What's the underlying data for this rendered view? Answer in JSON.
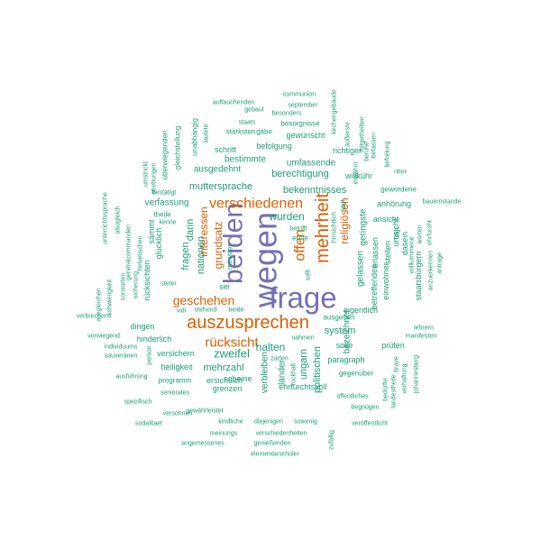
{
  "palette": {
    "teal": "#1b9e77",
    "orange": "#d95f02",
    "purple": "#7570b3"
  },
  "words": [
    {
      "text": "frage",
      "color": "purple"
    },
    {
      "text": "wegen",
      "color": "purple"
    },
    {
      "text": "beiden",
      "color": "purple"
    },
    {
      "text": "mehrheit",
      "color": "orange"
    },
    {
      "text": "auszusprechen",
      "color": "orange"
    },
    {
      "text": "verschiedenen",
      "color": "orange"
    },
    {
      "text": "offen",
      "color": "orange"
    },
    {
      "text": "rücksicht",
      "color": "orange"
    },
    {
      "text": "geschehen",
      "color": "orange"
    },
    {
      "text": "religiösen",
      "color": "orange"
    },
    {
      "text": "interessen",
      "color": "orange"
    },
    {
      "text": "grundsatz",
      "color": "orange"
    },
    {
      "text": "wurden",
      "color": "teal"
    },
    {
      "text": "zweifel",
      "color": "teal"
    },
    {
      "text": "halten",
      "color": "teal"
    },
    {
      "text": "muttersprache",
      "color": "teal"
    },
    {
      "text": "bekenntnisses",
      "color": "teal"
    },
    {
      "text": "berechtigung",
      "color": "teal"
    },
    {
      "text": "fragen",
      "color": "teal"
    },
    {
      "text": "darin",
      "color": "teal"
    },
    {
      "text": "nationen",
      "color": "teal"
    },
    {
      "text": "system",
      "color": "teal"
    },
    {
      "text": "mehrzahl",
      "color": "teal"
    },
    {
      "text": "ungarn",
      "color": "teal"
    },
    {
      "text": "politischen",
      "color": "teal"
    },
    {
      "text": "bezeichnet",
      "color": "teal"
    },
    {
      "text": "gelassen",
      "color": "teal"
    },
    {
      "text": "geringste",
      "color": "teal"
    },
    {
      "text": "verfassung",
      "color": "teal"
    },
    {
      "text": "umfassende",
      "color": "teal"
    },
    {
      "text": "bestimmte",
      "color": "teal"
    },
    {
      "text": "ausgedehnt",
      "color": "teal"
    },
    {
      "text": "schritt",
      "color": "teal"
    },
    {
      "text": "befolgung",
      "color": "teal"
    },
    {
      "text": "willkühr",
      "color": "teal"
    },
    {
      "text": "gewünscht",
      "color": "teal"
    },
    {
      "text": "richtiger",
      "color": "teal"
    },
    {
      "text": "ansicht",
      "color": "teal"
    },
    {
      "text": "erlassen",
      "color": "teal"
    },
    {
      "text": "stellen",
      "color": "teal"
    },
    {
      "text": "betreffenden",
      "color": "teal"
    },
    {
      "text": "einwohner",
      "color": "teal"
    },
    {
      "text": "umsicht",
      "color": "teal"
    },
    {
      "text": "staatsbürgern",
      "color": "teal"
    },
    {
      "text": "dasein",
      "color": "teal"
    },
    {
      "text": "anhörung",
      "color": "teal"
    },
    {
      "text": "gewordene",
      "color": "teal"
    },
    {
      "text": "eigentlich",
      "color": "teal"
    },
    {
      "text": "ausgehen",
      "color": "teal"
    },
    {
      "text": "solle",
      "color": "teal"
    },
    {
      "text": "prüfen",
      "color": "teal"
    },
    {
      "text": "paragraph",
      "color": "teal"
    },
    {
      "text": "gegenüber",
      "color": "teal"
    },
    {
      "text": "ehrfurchtsvoll",
      "color": "teal"
    },
    {
      "text": "ersichtlich",
      "color": "teal"
    },
    {
      "text": "scheine",
      "color": "teal"
    },
    {
      "text": "grenzen",
      "color": "teal"
    },
    {
      "text": "heiligkeit",
      "color": "teal"
    },
    {
      "text": "versichern",
      "color": "teal"
    },
    {
      "text": "hinderlich",
      "color": "teal"
    },
    {
      "text": "dingen",
      "color": "teal"
    },
    {
      "text": "programm",
      "color": "teal"
    },
    {
      "text": "seniorates",
      "color": "teal"
    },
    {
      "text": "glücklich",
      "color": "teal"
    },
    {
      "text": "sei",
      "color": "teal"
    },
    {
      "text": "minister",
      "color": "teal"
    },
    {
      "text": "länder",
      "color": "teal"
    },
    {
      "text": "verbleiben",
      "color": "teal"
    },
    {
      "text": "rücksichten",
      "color": "teal"
    },
    {
      "text": "sämmt",
      "color": "teal"
    },
    {
      "text": "gleichstellung",
      "color": "teal"
    },
    {
      "text": "überwiegenden",
      "color": "teal"
    },
    {
      "text": "unabhängig",
      "color": "teal"
    },
    {
      "text": "stärksten",
      "color": "teal"
    },
    {
      "text": "gäbe",
      "color": "teal"
    },
    {
      "text": "besorgnisse",
      "color": "teal"
    },
    {
      "text": "staats",
      "color": "teal"
    },
    {
      "text": "gebaut",
      "color": "teal"
    },
    {
      "text": "september",
      "color": "teal"
    },
    {
      "text": "besonders",
      "color": "teal"
    },
    {
      "text": "auftauchenden",
      "color": "teal"
    },
    {
      "text": "communion",
      "color": "teal"
    },
    {
      "text": "kirchengebäude",
      "color": "teal"
    },
    {
      "text": "äußerste",
      "color": "teal"
    },
    {
      "text": "mitgetheilten",
      "color": "teal"
    },
    {
      "text": "befassen",
      "color": "teal"
    },
    {
      "text": "befreiung",
      "color": "teal"
    },
    {
      "text": "ritter",
      "color": "teal"
    },
    {
      "text": "bauernstande",
      "color": "teal"
    },
    {
      "text": "erwähnt",
      "color": "teal"
    },
    {
      "text": "lautete",
      "color": "teal"
    },
    {
      "text": "umstrickt",
      "color": "teal"
    },
    {
      "text": "strebungen",
      "color": "teal"
    },
    {
      "text": "bestätigt",
      "color": "teal"
    },
    {
      "text": "theile",
      "color": "teal"
    },
    {
      "text": "kenne",
      "color": "teal"
    },
    {
      "text": "unterrichtssprache",
      "color": "teal"
    },
    {
      "text": "alsogleich",
      "color": "teal"
    },
    {
      "text": "generalcommanden",
      "color": "teal"
    },
    {
      "text": "helvetischen",
      "color": "teal"
    },
    {
      "text": "sicherung",
      "color": "teal"
    },
    {
      "text": "schwierigkeit",
      "color": "teal"
    },
    {
      "text": "ausgleichen",
      "color": "teal"
    },
    {
      "text": "consorten",
      "color": "teal"
    },
    {
      "text": "steter",
      "color": "teal"
    },
    {
      "text": "vidi",
      "color": "teal"
    },
    {
      "text": "stehend",
      "color": "teal"
    },
    {
      "text": "beide",
      "color": "teal"
    },
    {
      "text": "verbrechens",
      "color": "teal"
    },
    {
      "text": "vorwiegend",
      "color": "teal"
    },
    {
      "text": "individuums",
      "color": "teal"
    },
    {
      "text": "souveränen",
      "color": "teal"
    },
    {
      "text": "person",
      "color": "teal"
    },
    {
      "text": "ausführung",
      "color": "teal"
    },
    {
      "text": "specifisch",
      "color": "teal"
    },
    {
      "text": "versöhnen",
      "color": "teal"
    },
    {
      "text": "gewährleistet",
      "color": "teal"
    },
    {
      "text": "sodalitaet",
      "color": "teal"
    },
    {
      "text": "kindliche",
      "color": "teal"
    },
    {
      "text": "diejenigen",
      "color": "teal"
    },
    {
      "text": "sowenig",
      "color": "teal"
    },
    {
      "text": "meinungs",
      "color": "teal"
    },
    {
      "text": "verschiedenheiten",
      "color": "teal"
    },
    {
      "text": "angemessenes",
      "color": "teal"
    },
    {
      "text": "genießenden",
      "color": "teal"
    },
    {
      "text": "elementarschüler",
      "color": "teal"
    },
    {
      "text": "zufällig",
      "color": "teal"
    },
    {
      "text": "veröffentlicht",
      "color": "teal"
    },
    {
      "text": "begnügen",
      "color": "teal"
    },
    {
      "text": "öffentliches",
      "color": "teal"
    },
    {
      "text": "bedürfte",
      "color": "teal"
    },
    {
      "text": "landestheile",
      "color": "teal"
    },
    {
      "text": "brave",
      "color": "teal"
    },
    {
      "text": "verhaftung",
      "color": "teal"
    },
    {
      "text": "johannesberg",
      "color": "teal"
    },
    {
      "text": "lehrern",
      "color": "teal"
    },
    {
      "text": "manifesten",
      "color": "teal"
    },
    {
      "text": "zarten",
      "color": "teal"
    },
    {
      "text": "nahmen",
      "color": "teal"
    },
    {
      "text": "rückhalt",
      "color": "teal"
    },
    {
      "text": "sollt",
      "color": "teal"
    },
    {
      "text": "betrifft",
      "color": "teal"
    },
    {
      "text": "erste",
      "color": "teal"
    },
    {
      "text": "hinsichtlich",
      "color": "teal"
    },
    {
      "text": "sagt",
      "color": "teal"
    },
    {
      "text": "folgt",
      "color": "teal"
    },
    {
      "text": "worten",
      "color": "teal"
    },
    {
      "text": "ehrfurcht",
      "color": "teal"
    },
    {
      "text": "vollkommene",
      "color": "teal"
    },
    {
      "text": "anzuerkennen",
      "color": "teal"
    },
    {
      "text": "antrage",
      "color": "teal"
    },
    {
      "text": "beruhe",
      "color": "teal"
    }
  ]
}
